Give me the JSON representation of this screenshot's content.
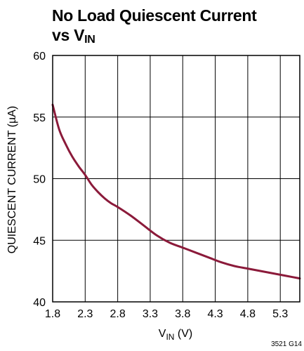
{
  "title": {
    "line1": "No Load Quiescent Current",
    "line2_main": "vs V",
    "line2_sub": "IN"
  },
  "figure_code": "3521 G14",
  "chart_data": {
    "type": "line",
    "xlabel_main": "V",
    "xlabel_sub": "IN",
    "xlabel_unit": " (V)",
    "ylabel": "QUIESCENT CURRENT (µA)",
    "xlim": [
      1.8,
      5.6
    ],
    "ylim": [
      40,
      60
    ],
    "x_ticks": [
      1.8,
      2.3,
      2.8,
      3.3,
      3.8,
      4.3,
      4.8,
      5.3
    ],
    "x_tick_labels": [
      "1.8",
      "2.3",
      "2.8",
      "3.3",
      "3.8",
      "4.3",
      "4.8",
      "5.3"
    ],
    "y_ticks": [
      40,
      45,
      50,
      55,
      60
    ],
    "y_tick_labels": [
      "40",
      "45",
      "50",
      "55",
      "60"
    ],
    "grid": true,
    "line_color": "#8b1a3a",
    "series": [
      {
        "x": [
          1.8,
          1.9,
          2.0,
          2.1,
          2.2,
          2.3,
          2.4,
          2.5,
          2.6,
          2.7,
          2.8,
          3.0,
          3.2,
          3.4,
          3.6,
          3.8,
          4.0,
          4.2,
          4.4,
          4.6,
          4.8,
          5.0,
          5.2,
          5.4,
          5.6
        ],
        "y": [
          56.0,
          54.0,
          52.8,
          51.8,
          51.0,
          50.3,
          49.5,
          48.9,
          48.4,
          48.0,
          47.7,
          47.0,
          46.2,
          45.4,
          44.8,
          44.4,
          44.0,
          43.6,
          43.2,
          42.9,
          42.7,
          42.5,
          42.3,
          42.1,
          41.9
        ]
      }
    ]
  }
}
